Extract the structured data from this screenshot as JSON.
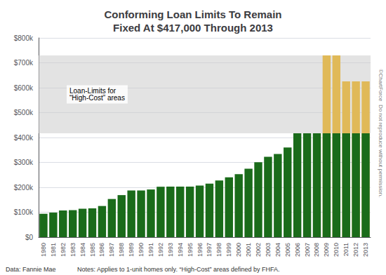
{
  "chart_data": {
    "type": "bar",
    "title": "Conforming Loan Limits To Remain\nFixed At $417,000 Through 2013",
    "categories": [
      "1980",
      "1981",
      "1982",
      "1983",
      "1984",
      "1985",
      "1986",
      "1987",
      "1988",
      "1989",
      "1990",
      "1991",
      "1992",
      "1993",
      "1994",
      "1995",
      "1996",
      "1997",
      "1998",
      "1999",
      "2000",
      "2001",
      "2002",
      "2003",
      "2004",
      "2005",
      "2006",
      "2007",
      "2008",
      "2009",
      "2010",
      "2011",
      "2012",
      "2013"
    ],
    "series": [
      {
        "color": "#1a6b1a",
        "values": [
          93750,
          98500,
          107000,
          108300,
          114000,
          115300,
          125000,
          153100,
          168700,
          187600,
          187450,
          191250,
          202300,
          203150,
          203150,
          203150,
          207000,
          214600,
          227150,
          240000,
          252700,
          275000,
          300700,
          322700,
          333700,
          359650,
          417000,
          417000,
          417000,
          417000,
          417000,
          417000,
          417000,
          417000
        ]
      },
      {
        "color": "#e0b958",
        "values": [
          0,
          0,
          0,
          0,
          0,
          0,
          0,
          0,
          0,
          0,
          0,
          0,
          0,
          0,
          0,
          0,
          0,
          0,
          0,
          0,
          0,
          0,
          0,
          0,
          0,
          0,
          0,
          0,
          0,
          729750,
          729750,
          625500,
          625500,
          625500
        ]
      }
    ],
    "ylim": [
      0,
      800000
    ],
    "yticks": [
      {
        "value": 0,
        "label": "$0"
      },
      {
        "value": 100000,
        "label": "$100k"
      },
      {
        "value": 200000,
        "label": "$200k"
      },
      {
        "value": 300000,
        "label": "$300k"
      },
      {
        "value": 400000,
        "label": "$400k"
      },
      {
        "value": 500000,
        "label": "$500k"
      },
      {
        "value": 600000,
        "label": "$600k"
      },
      {
        "value": 700000,
        "label": "$700k"
      },
      {
        "value": 800000,
        "label": "$800k"
      }
    ],
    "grid": true,
    "high_cost_area": {
      "from": 417000,
      "to": 729750,
      "color": "#cccccc"
    },
    "annotations": [
      "Loan-Limits for\n“High-Cost” areas"
    ],
    "footnotes": [
      "Data: Fannie Mae",
      "Notes: Applies to 1-unit homes only. “High-Cost” areas defined by FHFA."
    ],
    "watermark": "©ChartForce  Do not reproduce without permission."
  }
}
